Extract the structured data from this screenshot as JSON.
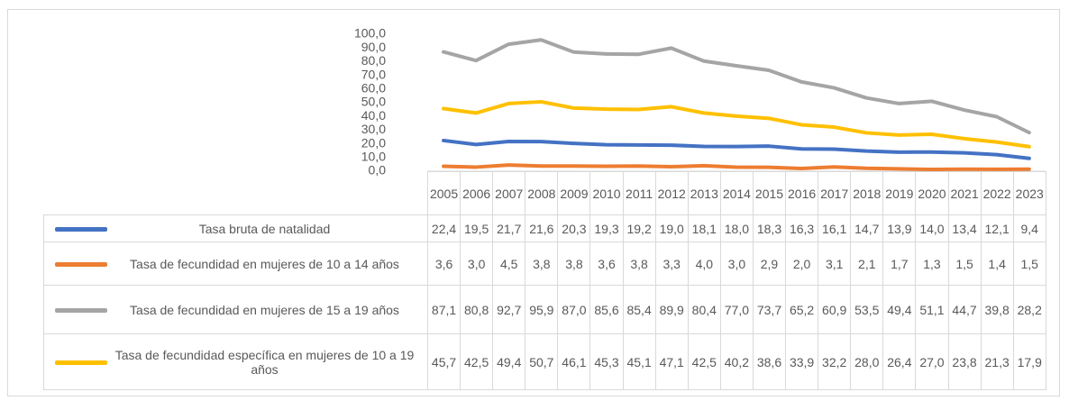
{
  "chart_data": {
    "type": "line",
    "categories": [
      "2005",
      "2006",
      "2007",
      "2008",
      "2009",
      "2010",
      "2011",
      "2012",
      "2013",
      "2014",
      "2015",
      "2016",
      "2017",
      "2018",
      "2019",
      "2020",
      "2021",
      "2022",
      "2023"
    ],
    "ylim": [
      0,
      100
    ],
    "yticks": [
      {
        "value": 0,
        "label": "0,0"
      },
      {
        "value": 10,
        "label": "10,0"
      },
      {
        "value": 20,
        "label": "20,0"
      },
      {
        "value": 30,
        "label": "30,0"
      },
      {
        "value": 40,
        "label": "40,0"
      },
      {
        "value": 50,
        "label": "50,0"
      },
      {
        "value": 60,
        "label": "60,0"
      },
      {
        "value": 70,
        "label": "70,0"
      },
      {
        "value": 80,
        "label": "80,0"
      },
      {
        "value": 90,
        "label": "90,0"
      },
      {
        "value": 100,
        "label": "100,0"
      }
    ],
    "series": [
      {
        "name": "Tasa bruta de natalidad",
        "color": "#4472c4",
        "values": [
          22.4,
          19.5,
          21.7,
          21.6,
          20.3,
          19.3,
          19.2,
          19.0,
          18.1,
          18.0,
          18.3,
          16.3,
          16.1,
          14.7,
          13.9,
          14.0,
          13.4,
          12.1,
          9.4
        ],
        "value_labels": [
          "22,4",
          "19,5",
          "21,7",
          "21,6",
          "20,3",
          "19,3",
          "19,2",
          "19,0",
          "18,1",
          "18,0",
          "18,3",
          "16,3",
          "16,1",
          "14,7",
          "13,9",
          "14,0",
          "13,4",
          "12,1",
          "9,4"
        ]
      },
      {
        "name": "Tasa de fecundidad en mujeres de 10 a 14 años",
        "color": "#ed7d31",
        "values": [
          3.6,
          3.0,
          4.5,
          3.8,
          3.8,
          3.6,
          3.8,
          3.3,
          4.0,
          3.0,
          2.9,
          2.0,
          3.1,
          2.1,
          1.7,
          1.3,
          1.5,
          1.4,
          1.5
        ],
        "value_labels": [
          "3,6",
          "3,0",
          "4,5",
          "3,8",
          "3,8",
          "3,6",
          "3,8",
          "3,3",
          "4,0",
          "3,0",
          "2,9",
          "2,0",
          "3,1",
          "2,1",
          "1,7",
          "1,3",
          "1,5",
          "1,4",
          "1,5"
        ]
      },
      {
        "name": "Tasa de fecundidad en mujeres de 15 a 19 años",
        "color": "#a5a5a5",
        "values": [
          87.1,
          80.8,
          92.7,
          95.9,
          87.0,
          85.6,
          85.4,
          89.9,
          80.4,
          77.0,
          73.7,
          65.2,
          60.9,
          53.5,
          49.4,
          51.1,
          44.7,
          39.8,
          28.2
        ],
        "value_labels": [
          "87,1",
          "80,8",
          "92,7",
          "95,9",
          "87,0",
          "85,6",
          "85,4",
          "89,9",
          "80,4",
          "77,0",
          "73,7",
          "65,2",
          "60,9",
          "53,5",
          "49,4",
          "51,1",
          "44,7",
          "39,8",
          "28,2"
        ]
      },
      {
        "name": "Tasa de fecundidad específica en mujeres de 10 a 19 años",
        "color": "#ffc000",
        "values": [
          45.7,
          42.5,
          49.4,
          50.7,
          46.1,
          45.3,
          45.1,
          47.1,
          42.5,
          40.2,
          38.6,
          33.9,
          32.2,
          28.0,
          26.4,
          27.0,
          23.8,
          21.3,
          17.9
        ],
        "value_labels": [
          "45,7",
          "42,5",
          "49,4",
          "50,7",
          "46,1",
          "45,3",
          "45,1",
          "47,1",
          "42,5",
          "40,2",
          "38,6",
          "33,9",
          "32,2",
          "28,0",
          "26,4",
          "27,0",
          "23,8",
          "21,3",
          "17,9"
        ]
      }
    ]
  }
}
